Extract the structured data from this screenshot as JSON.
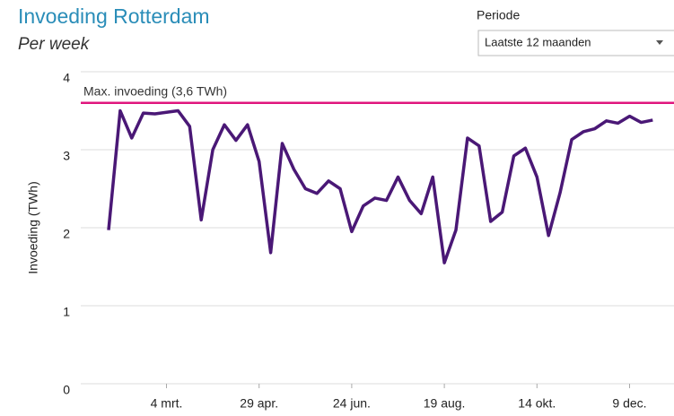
{
  "chart_data": {
    "type": "line",
    "title": "Invoeding Rotterdam",
    "subtitle": "Per week",
    "y_label": "Invoeding (TWh)",
    "categories": [
      null,
      null,
      null,
      null,
      null,
      "4 mrt.",
      null,
      null,
      null,
      null,
      null,
      null,
      null,
      "29 apr.",
      null,
      null,
      null,
      null,
      null,
      null,
      null,
      "24 jun.",
      null,
      null,
      null,
      null,
      null,
      null,
      null,
      "19 aug.",
      null,
      null,
      null,
      null,
      null,
      null,
      null,
      "14 okt.",
      null,
      null,
      null,
      null,
      null,
      null,
      null,
      "9 dec.",
      null,
      null
    ],
    "series": [
      {
        "name": "Invoeding",
        "color": "#4a1876",
        "values": [
          1.97,
          3.5,
          3.15,
          3.47,
          3.46,
          3.48,
          3.5,
          3.3,
          2.1,
          3.0,
          3.32,
          3.12,
          3.32,
          2.85,
          1.68,
          3.08,
          2.75,
          2.5,
          2.44,
          2.6,
          2.5,
          1.95,
          2.28,
          2.38,
          2.35,
          2.65,
          2.35,
          2.18,
          2.65,
          1.55,
          1.97,
          3.15,
          3.05,
          2.08,
          2.2,
          2.92,
          3.02,
          2.65,
          1.9,
          2.45,
          3.13,
          3.23,
          3.27,
          3.37,
          3.34,
          3.43,
          3.35,
          3.38
        ]
      }
    ],
    "ylim": [
      0,
      4
    ],
    "yticks": [
      0,
      1,
      2,
      3,
      4
    ],
    "grid": true,
    "reference_line": {
      "value": 3.6,
      "label": "Max. invoeding (3,6 TWh)",
      "color": "#e0157d"
    }
  },
  "controls": {
    "label": "Periode",
    "selected": "Laatste 12 maanden"
  }
}
